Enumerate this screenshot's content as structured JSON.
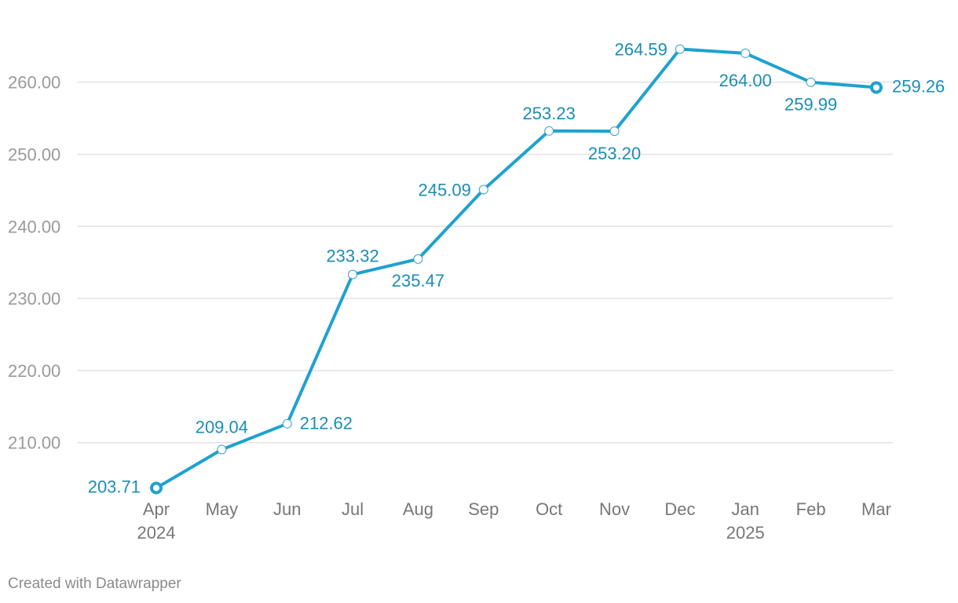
{
  "chart_data": {
    "type": "line",
    "categories": [
      "Apr",
      "May",
      "Jun",
      "Jul",
      "Aug",
      "Sep",
      "Oct",
      "Nov",
      "Dec",
      "Jan",
      "Feb",
      "Mar"
    ],
    "year_labels": [
      {
        "index": 0,
        "label": "2024"
      },
      {
        "index": 9,
        "label": "2025"
      }
    ],
    "series": [
      {
        "name": "value",
        "values": [
          203.71,
          209.04,
          212.62,
          233.32,
          235.47,
          245.09,
          253.23,
          253.2,
          264.59,
          264.0,
          259.99,
          259.26
        ],
        "labels": [
          "203.71",
          "209.04",
          "212.62",
          "233.32",
          "235.47",
          "245.09",
          "253.23",
          "253.20",
          "264.59",
          "264.00",
          "259.99",
          "259.26"
        ]
      }
    ],
    "yticks": [
      210,
      220,
      230,
      240,
      250,
      260
    ],
    "ytick_labels": [
      "210.00",
      "220.00",
      "230.00",
      "240.00",
      "250.00",
      "260.00"
    ],
    "ylim": [
      203.71,
      264.59
    ],
    "grid": true,
    "title": "",
    "xlabel": "",
    "ylabel": "",
    "line_color": "#1ea2cf",
    "label_color": "#1b8db5"
  },
  "footer": {
    "credit": "Created with Datawrapper"
  }
}
